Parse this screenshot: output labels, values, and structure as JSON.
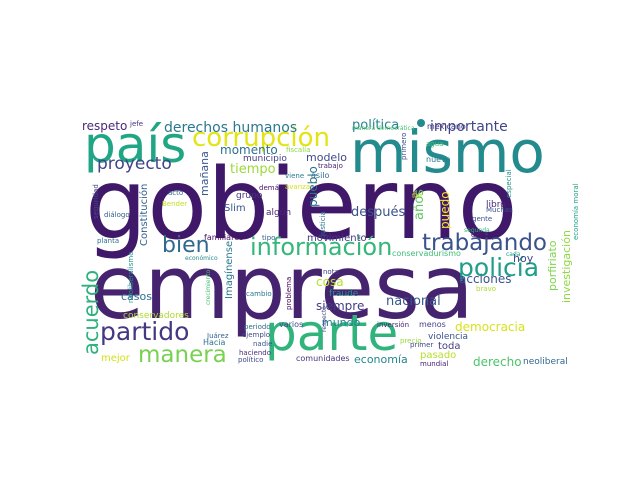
{
  "words": [
    {
      "text": "empresa",
      "color": "#46236f"
    },
    {
      "text": "gobierno",
      "color": "#40186a"
    },
    {
      "text": "mismo",
      "color": "#238a8d"
    },
    {
      "text": "país",
      "color": "#21a685"
    },
    {
      "text": "parte",
      "color": "#30b47c"
    },
    {
      "text": "corrupción",
      "color": "#e3e418"
    },
    {
      "text": "información",
      "color": "#35b779"
    },
    {
      "text": "trabajando",
      "color": "#3b528b"
    },
    {
      "text": "policía",
      "color": "#1f9e89"
    },
    {
      "text": "partido",
      "color": "#453781"
    },
    {
      "text": "manera",
      "color": "#7ad151"
    },
    {
      "text": "acuerdo",
      "color": "#2db27d"
    },
    {
      "text": "bien",
      "color": "#31688e"
    },
    {
      "text": "proyecto",
      "color": "#414487"
    },
    {
      "text": "derechos humanos",
      "color": "#2a788e"
    },
    {
      "text": "respeto",
      "color": "#482878"
    },
    {
      "text": "jefe",
      "color": "#46327e"
    },
    {
      "text": "política",
      "color": "#26828e"
    },
    {
      "text": "importante",
      "color": "#404688"
    },
    {
      "text": "mexicano",
      "color": "#443a83"
    },
    {
      "text": "manera democrática",
      "color": "#4ac16d"
    },
    {
      "text": "tiempo",
      "color": "#9bd93c"
    },
    {
      "text": "momento",
      "color": "#2d708e"
    },
    {
      "text": "mañana",
      "color": "#38588c"
    },
    {
      "text": "municipio",
      "color": "#433e85"
    },
    {
      "text": "fiscalía",
      "color": "#8fd744"
    },
    {
      "text": "modelo",
      "color": "#3e4989"
    },
    {
      "text": "trabajo",
      "color": "#481f70"
    },
    {
      "text": "viene",
      "color": "#287c8e"
    },
    {
      "text": "asilo",
      "color": "#2e6e8e"
    },
    {
      "text": "avanzar",
      "color": "#d2e21b"
    },
    {
      "text": "pueblo",
      "color": "#2c728e"
    },
    {
      "text": "agua",
      "color": "#3fbc73"
    },
    {
      "text": "nueva",
      "color": "#297b8e"
    },
    {
      "text": "primero",
      "color": "#3c4f8a"
    },
    {
      "text": "fin",
      "color": "#e5e419"
    },
    {
      "text": "tan",
      "color": "#bddf26"
    },
    {
      "text": "después",
      "color": "#3b528b"
    },
    {
      "text": "años",
      "color": "#5ec962"
    },
    {
      "text": "puedo",
      "color": "#fde725"
    },
    {
      "text": "seguridad",
      "color": "#3e4a89"
    },
    {
      "text": "acto",
      "color": "#2f6c8e"
    },
    {
      "text": "demás",
      "color": "#471365"
    },
    {
      "text": "Bender",
      "color": "#c2df23"
    },
    {
      "text": "grupo",
      "color": "#46337e"
    },
    {
      "text": "Slim",
      "color": "#3a548c"
    },
    {
      "text": "algún",
      "color": "#482475"
    },
    {
      "text": "diálogo",
      "color": "#365c8d"
    },
    {
      "text": "Constitución",
      "color": "#34618d"
    },
    {
      "text": "libro",
      "color": "#482677"
    },
    {
      "text": "Muchas",
      "color": "#3c4f8a"
    },
    {
      "text": "gente",
      "color": "#3b528b"
    },
    {
      "text": "especial",
      "color": "#21918c"
    },
    {
      "text": "segunda",
      "color": "#2fb47c"
    },
    {
      "text": "justicia",
      "color": "#2a778e"
    },
    {
      "text": "economía moral",
      "color": "#20a386"
    },
    {
      "text": "planta",
      "color": "#2e6f8e"
    },
    {
      "text": "familiares",
      "color": "#471063"
    },
    {
      "text": "tipo",
      "color": "#355f8d"
    },
    {
      "text": "movimiento",
      "color": "#453882"
    },
    {
      "text": "conservadurismo",
      "color": "#3dbc74"
    },
    {
      "text": "debe",
      "color": "#481b6d"
    },
    {
      "text": "económico",
      "color": "#24878e"
    },
    {
      "text": "hoy",
      "color": "#3e4989"
    },
    {
      "text": "nota",
      "color": "#443b84"
    },
    {
      "text": "cosa",
      "color": "#b5de2b"
    },
    {
      "text": "acciones",
      "color": "#3b528b"
    },
    {
      "text": "porfiriato",
      "color": "#7fd34e"
    },
    {
      "text": "Imagínense",
      "color": "#2a788e"
    },
    {
      "text": "neoliberalismo",
      "color": "#20928c"
    },
    {
      "text": "cambio",
      "color": "#2a788e"
    },
    {
      "text": "problema",
      "color": "#440154"
    },
    {
      "text": "fraude",
      "color": "#20938c"
    },
    {
      "text": "casos",
      "color": "#2c718e"
    },
    {
      "text": "siempre",
      "color": "#433d84"
    },
    {
      "text": "nacional",
      "color": "#375a8c"
    },
    {
      "text": "investigación",
      "color": "#90d743"
    },
    {
      "text": "bravo",
      "color": "#addc30"
    },
    {
      "text": "crecimiento",
      "color": "#4ac16d"
    },
    {
      "text": "conservadores",
      "color": "#addc30"
    },
    {
      "text": "periodo",
      "color": "#306a8e"
    },
    {
      "text": "varios",
      "color": "#3d4e8a"
    },
    {
      "text": "mundo",
      "color": "#287d8e"
    },
    {
      "text": "inversión",
      "color": "#482374"
    },
    {
      "text": "menos",
      "color": "#404387"
    },
    {
      "text": "democracia",
      "color": "#d8e219"
    },
    {
      "text": "Juárez",
      "color": "#355f8d"
    },
    {
      "text": "ejemplo",
      "color": "#3e4989"
    },
    {
      "text": "nadie",
      "color": "#39568c"
    },
    {
      "text": "respecto",
      "color": "#3d4d8a"
    },
    {
      "text": "violencia",
      "color": "#3b528b"
    },
    {
      "text": "primer",
      "color": "#3e4989"
    },
    {
      "text": "cada",
      "color": "#1fa088"
    },
    {
      "text": "toda",
      "color": "#433e85"
    },
    {
      "text": "mejor",
      "color": "#d0e11c"
    },
    {
      "text": "Hacia",
      "color": "#2b758e"
    },
    {
      "text": "haciendo",
      "color": "#472f7d"
    },
    {
      "text": "político",
      "color": "#3e4989"
    },
    {
      "text": "comunidades",
      "color": "#46327e"
    },
    {
      "text": "precio",
      "color": "#9bd93c"
    },
    {
      "text": "pasado",
      "color": "#b8de29"
    },
    {
      "text": "economía",
      "color": "#24868e"
    },
    {
      "text": "mundial",
      "color": "#482173"
    },
    {
      "text": "derecho",
      "color": "#4ec36b"
    },
    {
      "text": "neoliberal",
      "color": "#31688e"
    }
  ]
}
